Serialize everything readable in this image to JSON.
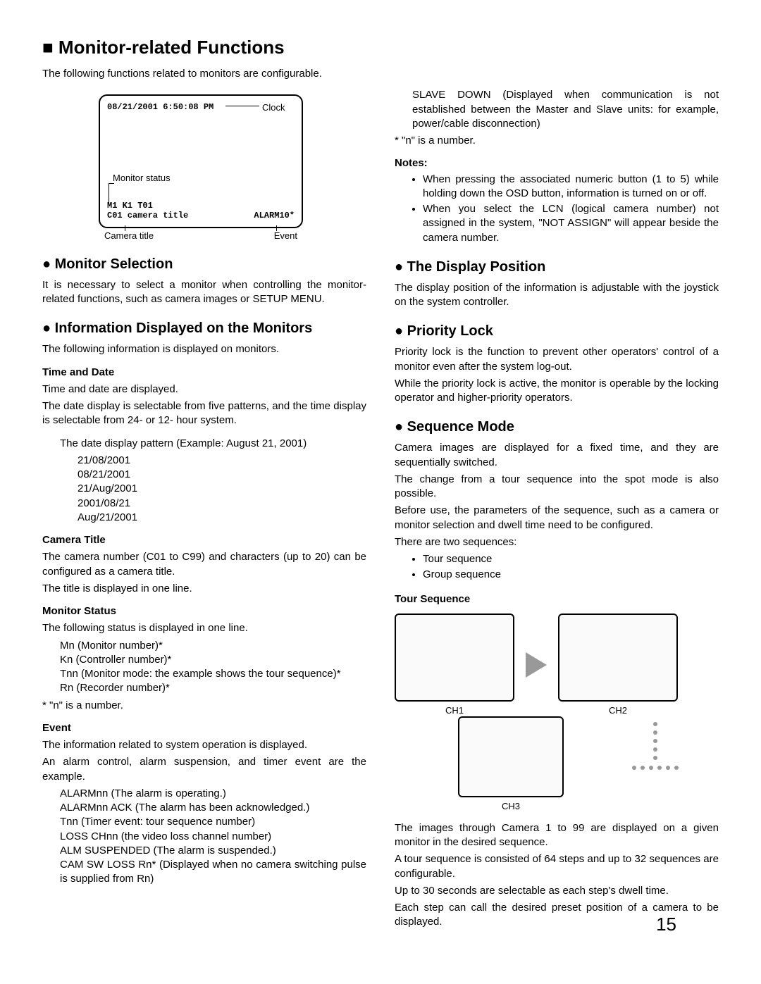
{
  "page_number": "15",
  "heading_main": "■ Monitor-related Functions",
  "intro": "The following functions related to monitors are configurable.",
  "monitor_diagram": {
    "top_text": "08/21/2001 6:50:08 PM",
    "clock_label": "Clock",
    "status_label": "Monitor status",
    "line1": "M1  K1 T01",
    "line2": "C01 camera title",
    "alarm": "ALARM10*",
    "below_left": "Camera title",
    "below_right": "Event"
  },
  "sec_monitor_sel": {
    "title": "● Monitor Selection",
    "body": "It is necessary to select a monitor when controlling the monitor-related functions, such as camera images or SETUP MENU."
  },
  "sec_info": {
    "title": "● Information Displayed on the Monitors",
    "intro": "The following information is displayed on monitors.",
    "time_date_h": "Time and Date",
    "time_date_p1": "Time and date are displayed.",
    "time_date_p2": "The date display is selectable from five patterns, and the time display is selectable from 24- or 12- hour system.",
    "date_pattern_intro": "The date display pattern (Example: August 21, 2001)",
    "date_patterns": [
      "21/08/2001",
      "08/21/2001",
      "21/Aug/2001",
      "2001/08/21",
      "Aug/21/2001"
    ],
    "camera_title_h": "Camera Title",
    "camera_title_p1": "The camera number (C01 to C99) and characters (up to 20) can be configured as a camera title.",
    "camera_title_p2": "The title is displayed in one line.",
    "monitor_status_h": "Monitor Status",
    "monitor_status_intro": "The following status is displayed in one line.",
    "monitor_status_items": [
      "Mn (Monitor number)*",
      "Kn (Controller number)*",
      "Tnn (Monitor mode: the example shows the tour sequence)*",
      "Rn (Recorder number)*"
    ],
    "monitor_status_note": "* \"n\" is a number.",
    "event_h": "Event",
    "event_p1": "The information related to system operation is displayed.",
    "event_p2": "An alarm control, alarm suspension, and timer event are the example.",
    "event_items": [
      "ALARMnn (The alarm is operating.)",
      "ALARMnn ACK (The alarm has been acknowledged.)",
      "Tnn (Timer event: tour sequence number)",
      "LOSS CHnn (the video loss channel number)",
      "ALM SUSPENDED (The alarm is suspended.)",
      "CAM SW LOSS Rn* (Displayed when no camera switching pulse is supplied from Rn)"
    ],
    "event_item_slave": "SLAVE DOWN (Displayed when communication is not established between the Master and Slave units: for example, power/cable disconnection)",
    "event_note": "* \"n\" is a number."
  },
  "sec_notes": {
    "title": "Notes:",
    "items": [
      "When pressing the associated numeric button (1 to 5) while holding down the OSD button, information is turned on or off.",
      "When you select the LCN (logical camera number) not assigned in the system, \"NOT ASSIGN\" will appear beside the camera number."
    ]
  },
  "sec_display_pos": {
    "title": "● The Display Position",
    "body": "The display position of the information is adjustable with the joystick on the system controller."
  },
  "sec_priority": {
    "title": "● Priority Lock",
    "p1": "Priority lock is the function to prevent other operators' control of a monitor even after the system log-out.",
    "p2": "While the priority lock is active, the monitor is operable by the locking operator and higher-priority operators."
  },
  "sec_sequence": {
    "title": "● Sequence Mode",
    "p1": "Camera images are displayed for a fixed time, and they are sequentially switched.",
    "p2": "The change from a tour sequence into the spot mode is also possible.",
    "p3": "Before use, the parameters of the sequence, such as a camera or monitor selection and dwell time need to be configured.",
    "p4": "There are two sequences:",
    "items": [
      "Tour sequence",
      "Group sequence"
    ],
    "tour_h": "Tour Sequence",
    "ch_labels": [
      "CH1",
      "CH2",
      "CH3"
    ],
    "tour_p1": "The images through Camera 1 to 99 are displayed on a given monitor in the desired sequence.",
    "tour_p2": "A tour sequence is consisted of 64 steps and up to 32 sequences are configurable.",
    "tour_p3": "Up to 30 seconds are selectable as each step's dwell time.",
    "tour_p4": "Each step can call the desired preset position of a camera to be displayed."
  }
}
